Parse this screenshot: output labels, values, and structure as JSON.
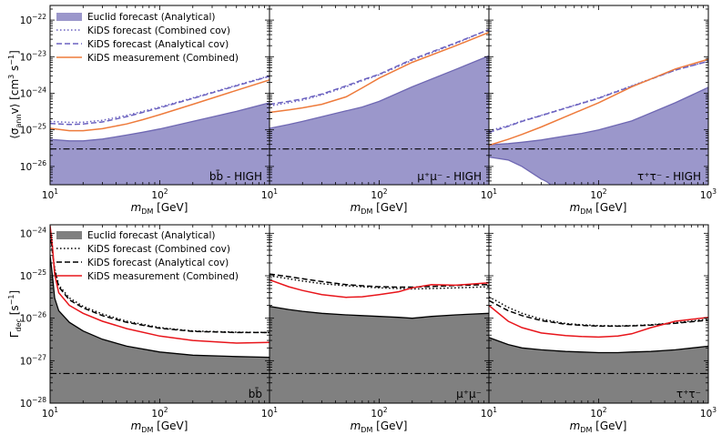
{
  "figure": {
    "rows": [
      {
        "id": "annihilation",
        "ylabel": "⟨σ_ann v⟩ [cm³ s⁻¹]",
        "ylabel_main": "⟨σ",
        "ylabel_sub": "ann",
        "ylabel_tail": "v⟩ [cm",
        "ylabel_sup1": "3",
        "ylabel_mid": " s",
        "ylabel_sup2": "−1",
        "ylabel_end": "]",
        "ylim_log10": [
          -26.5,
          -21.6
        ],
        "yticks": [
          {
            "exp": -26,
            "base": "10",
            "sup": "−26"
          },
          {
            "exp": -25,
            "base": "10",
            "sup": "−25"
          },
          {
            "exp": -24,
            "base": "10",
            "sup": "−24"
          },
          {
            "exp": -23,
            "base": "10",
            "sup": "−23"
          },
          {
            "exp": -22,
            "base": "10",
            "sup": "−22"
          }
        ],
        "legend": [
          {
            "style": "fill",
            "color": "#9b97cb",
            "label": "Euclid forecast (Analytical)"
          },
          {
            "style": "dotted",
            "color": "#6b62c0",
            "label": "KiDS forecast (Combined cov)"
          },
          {
            "style": "dashed",
            "color": "#6b62c0",
            "label": "KiDS forecast (Analytical cov)"
          },
          {
            "style": "solid",
            "color": "#ee7b3c",
            "label": "KiDS measurement (Combined)"
          }
        ],
        "colors": {
          "fill": "#9b97cb",
          "fill_edge": "#6f68b3",
          "forecast": "#6b62c0",
          "measurement": "#ee7b3c",
          "reference": "#000000"
        }
      },
      {
        "id": "decay",
        "ylabel": "Γ_dec [s⁻¹]",
        "ylabel_main": "Γ",
        "ylabel_sub": "dec",
        "ylabel_tail": " [s",
        "ylabel_sup1": "−1",
        "ylabel_mid": "",
        "ylabel_sup2": "",
        "ylabel_end": "]",
        "ylim_log10": [
          -28.0,
          -23.8
        ],
        "yticks": [
          {
            "exp": -28,
            "base": "10",
            "sup": "−28"
          },
          {
            "exp": -27,
            "base": "10",
            "sup": "−27"
          },
          {
            "exp": -26,
            "base": "10",
            "sup": "−26"
          },
          {
            "exp": -25,
            "base": "10",
            "sup": "−25"
          },
          {
            "exp": -24,
            "base": "10",
            "sup": "−24"
          }
        ],
        "legend": [
          {
            "style": "fill",
            "color": "#808080",
            "label": "Euclid forecast (Analytical)"
          },
          {
            "style": "dotted",
            "color": "#000000",
            "label": "KiDS forecast (Combined cov)"
          },
          {
            "style": "dashed",
            "color": "#000000",
            "label": "KiDS forecast (Analytical cov)"
          },
          {
            "style": "solid",
            "color": "#e8151b",
            "label": "KiDS measurement (Combined)"
          }
        ],
        "colors": {
          "fill": "#808080",
          "fill_edge": "#000000",
          "forecast": "#000000",
          "measurement": "#e8151b",
          "reference": "#000000"
        }
      }
    ],
    "xaxis": {
      "label_main": "m",
      "label_sub": "DM",
      "label_tail": " [GeV]",
      "xlim_log10": [
        1,
        3
      ],
      "ticks": [
        {
          "exp": 1,
          "base": "10",
          "sup": "1"
        },
        {
          "exp": 2,
          "base": "10",
          "sup": "2"
        },
        {
          "exp": 3,
          "base": "10",
          "sup": "3"
        }
      ]
    }
  },
  "chart_data": [
    {
      "type": "line",
      "row": 0,
      "col": 0,
      "channel_label": "bb̄ - HIGH",
      "xlabel": "m_DM [GeV]",
      "ylabel": "⟨σ_ann v⟩ [cm³ s⁻¹]",
      "xscale": "log",
      "yscale": "log",
      "xlim": [
        10,
        1000
      ],
      "ylim": [
        3e-27,
        2.5e-22
      ],
      "x": [
        10,
        15,
        20,
        30,
        50,
        70,
        100,
        200,
        500,
        1000
      ],
      "series": [
        {
          "name": "Euclid forecast (Analytical)",
          "kind": "fill",
          "values": [
            5.5e-26,
            5e-26,
            5e-26,
            5.6e-26,
            7.2e-26,
            8.6e-26,
            1.06e-25,
            1.7e-25,
            3.2e-25,
            5.5e-25
          ]
        },
        {
          "name": "KiDS forecast (Combined cov)",
          "kind": "dotted",
          "values": [
            1.7e-25,
            1.6e-25,
            1.62e-25,
            1.82e-25,
            2.5e-25,
            3.2e-25,
            4.2e-25,
            7.5e-25,
            1.65e-24,
            3e-24
          ]
        },
        {
          "name": "KiDS forecast (Analytical cov)",
          "kind": "dashed",
          "values": [
            1.5e-25,
            1.4e-25,
            1.45e-25,
            1.65e-25,
            2.3e-25,
            3e-25,
            4e-25,
            7.2e-25,
            1.6e-24,
            2.9e-24
          ]
        },
        {
          "name": "KiDS measurement (Combined)",
          "kind": "solid",
          "values": [
            1.1e-25,
            9.5e-26,
            9.5e-26,
            1.08e-25,
            1.45e-25,
            1.9e-25,
            2.6e-25,
            5e-25,
            1.2e-24,
            2.3e-24
          ]
        },
        {
          "name": "reference",
          "kind": "dashdot",
          "values": [
            3e-26,
            3e-26,
            3e-26,
            3e-26,
            3e-26,
            3e-26,
            3e-26,
            3e-26,
            3e-26,
            3e-26
          ]
        }
      ]
    },
    {
      "type": "line",
      "row": 0,
      "col": 1,
      "channel_label": "μ⁺μ⁻ - HIGH",
      "xlabel": "m_DM [GeV]",
      "ylabel": "⟨σ_ann v⟩ [cm³ s⁻¹]",
      "xscale": "log",
      "yscale": "log",
      "xlim": [
        10,
        1000
      ],
      "ylim": [
        3e-27,
        2.5e-22
      ],
      "x": [
        10,
        15,
        20,
        30,
        50,
        70,
        100,
        200,
        500,
        1000
      ],
      "series": [
        {
          "name": "Euclid forecast (Analytical)",
          "kind": "fill",
          "values": [
            1.1e-25,
            1.4e-25,
            1.7e-25,
            2.3e-25,
            3.3e-25,
            4.2e-25,
            6e-25,
            1.5e-24,
            4.5e-24,
            1.05e-23
          ]
        },
        {
          "name": "KiDS forecast (Combined cov)",
          "kind": "dotted",
          "values": [
            4.5e-25,
            5.5e-25,
            6.5e-25,
            9e-25,
            1.5e-24,
            2.2e-24,
            3.2e-24,
            8e-24,
            2.3e-23,
            5.5e-23
          ]
        },
        {
          "name": "KiDS forecast (Analytical cov)",
          "kind": "dashed",
          "values": [
            5e-25,
            6e-25,
            7e-25,
            9.5e-25,
            1.6e-24,
            2.3e-24,
            3.3e-24,
            8.5e-24,
            2.4e-23,
            5.5e-23
          ]
        },
        {
          "name": "KiDS measurement (Combined)",
          "kind": "solid",
          "values": [
            3e-25,
            3.5e-25,
            4e-25,
            5e-25,
            8e-25,
            1.4e-24,
            2.6e-24,
            7e-24,
            2e-23,
            4.6e-23
          ]
        },
        {
          "name": "reference",
          "kind": "dashdot",
          "values": [
            3e-26,
            3e-26,
            3e-26,
            3e-26,
            3e-26,
            3e-26,
            3e-26,
            3e-26,
            3e-26,
            3e-26
          ]
        }
      ]
    },
    {
      "type": "line",
      "row": 0,
      "col": 2,
      "channel_label": "τ⁺τ⁻ - HIGH",
      "xlabel": "m_DM [GeV]",
      "ylabel": "⟨σ_ann v⟩ [cm³ s⁻¹]",
      "xscale": "log",
      "yscale": "log",
      "xlim": [
        10,
        1000
      ],
      "ylim": [
        3e-27,
        2.5e-22
      ],
      "x": [
        10,
        15,
        20,
        30,
        50,
        70,
        100,
        200,
        500,
        1000
      ],
      "series": [
        {
          "name": "Euclid forecast (Analytical)",
          "kind": "fill",
          "values": [
            3.9e-26,
            4.2e-26,
            4.6e-26,
            5.3e-26,
            6.8e-26,
            8e-26,
            1e-25,
            1.75e-25,
            5.5e-25,
            1.45e-24
          ]
        },
        {
          "name": "Euclid forecast (Analytical) lower edge",
          "kind": "fill-lower",
          "values": [
            1.8e-26,
            1.5e-26,
            1e-26,
            4.5e-27,
            null,
            null,
            null,
            null,
            null,
            null
          ]
        },
        {
          "name": "KiDS forecast (Combined cov)",
          "kind": "dotted",
          "values": [
            9.5e-26,
            1.3e-25,
            1.75e-25,
            2.5e-25,
            4e-25,
            5.4e-25,
            7.5e-25,
            1.6e-24,
            4.3e-24,
            7.5e-24
          ]
        },
        {
          "name": "KiDS forecast (Analytical cov)",
          "kind": "dashed",
          "values": [
            8.5e-26,
            1.25e-25,
            1.7e-25,
            2.45e-25,
            3.9e-25,
            5.3e-25,
            7.3e-25,
            1.55e-24,
            4.3e-24,
            7.5e-24
          ]
        },
        {
          "name": "KiDS measurement (Combined)",
          "kind": "solid",
          "values": [
            3.8e-26,
            5.5e-26,
            7.5e-26,
            1.2e-25,
            2.3e-25,
            3.5e-25,
            5.5e-25,
            1.5e-24,
            4.6e-24,
            8.5e-24
          ]
        },
        {
          "name": "reference",
          "kind": "dashdot",
          "values": [
            3e-26,
            3e-26,
            3e-26,
            3e-26,
            3e-26,
            3e-26,
            3e-26,
            3e-26,
            3e-26,
            3e-26
          ]
        }
      ]
    },
    {
      "type": "line",
      "row": 1,
      "col": 0,
      "channel_label": "bb̄",
      "xlabel": "m_DM [GeV]",
      "ylabel": "Γ_dec [s⁻¹]",
      "xscale": "log",
      "yscale": "log",
      "xlim": [
        10,
        1000
      ],
      "ylim": [
        1e-28,
        1.6e-24
      ],
      "x": [
        10,
        10.5,
        11,
        12,
        15,
        20,
        30,
        50,
        100,
        200,
        500,
        1000
      ],
      "series": [
        {
          "name": "Euclid forecast (Analytical)",
          "kind": "fill",
          "values": [
            3e-25,
            1e-25,
            3e-26,
            1.5e-26,
            8e-27,
            5e-27,
            3.2e-27,
            2.2e-27,
            1.6e-27,
            1.35e-27,
            1.25e-27,
            1.2e-27
          ]
        },
        {
          "name": "KiDS forecast (Combined cov)",
          "kind": "dotted",
          "values": [
            1.2e-24,
            4e-25,
            1.5e-25,
            6e-26,
            3e-26,
            1.9e-26,
            1.25e-26,
            8.5e-27,
            6e-27,
            5e-27,
            4.7e-27,
            4.6e-27
          ]
        },
        {
          "name": "KiDS forecast (Analytical cov)",
          "kind": "dashed",
          "values": [
            1.1e-24,
            3.6e-25,
            1.35e-25,
            5.5e-26,
            2.7e-26,
            1.75e-26,
            1.15e-26,
            8e-27,
            5.8e-27,
            4.9e-27,
            4.6e-27,
            4.6e-27
          ]
        },
        {
          "name": "KiDS measurement (Combined)",
          "kind": "solid",
          "values": [
            1.5e-24,
            5e-25,
            1.1e-25,
            4e-26,
            2e-26,
            1.3e-26,
            8.5e-27,
            5.7e-27,
            3.8e-27,
            3e-27,
            2.6e-27,
            2.7e-27
          ]
        },
        {
          "name": "reference",
          "kind": "dashdot",
          "values": [
            5e-28,
            5e-28,
            5e-28,
            5e-28,
            5e-28,
            5e-28,
            5e-28,
            5e-28,
            5e-28,
            5e-28,
            5e-28,
            5e-28
          ]
        }
      ]
    },
    {
      "type": "line",
      "row": 1,
      "col": 1,
      "channel_label": "μ⁺μ⁻",
      "xlabel": "m_DM [GeV]",
      "ylabel": "Γ_dec [s⁻¹]",
      "xscale": "log",
      "yscale": "log",
      "xlim": [
        10,
        1000
      ],
      "ylim": [
        1e-28,
        1.6e-24
      ],
      "x": [
        10,
        15,
        20,
        30,
        50,
        70,
        100,
        150,
        200,
        300,
        500,
        1000
      ],
      "series": [
        {
          "name": "Euclid forecast (Analytical)",
          "kind": "fill",
          "values": [
            1.9e-26,
            1.6e-26,
            1.45e-26,
            1.3e-26,
            1.2e-26,
            1.15e-26,
            1.1e-26,
            1.05e-26,
            1e-26,
            1.1e-26,
            1.2e-26,
            1.3e-26
          ]
        },
        {
          "name": "KiDS forecast (Combined cov)",
          "kind": "dotted",
          "values": [
            1e-25,
            8.5e-26,
            7.5e-26,
            6.5e-26,
            5.8e-26,
            5.5e-26,
            5.2e-26,
            5e-26,
            4.9e-26,
            5e-26,
            5.2e-26,
            5.5e-26
          ]
        },
        {
          "name": "KiDS forecast (Analytical cov)",
          "kind": "dashed",
          "values": [
            1.1e-25,
            9.5e-26,
            8.5e-26,
            7.3e-26,
            6.2e-26,
            5.8e-26,
            5.5e-26,
            5.4e-26,
            5.4e-26,
            5.6e-26,
            5.9e-26,
            6.2e-26
          ]
        },
        {
          "name": "KiDS measurement (Combined)",
          "kind": "solid",
          "values": [
            8e-26,
            5.5e-26,
            4.5e-26,
            3.6e-26,
            3.1e-26,
            3.2e-26,
            3.6e-26,
            4.2e-26,
            5.2e-26,
            6.2e-26,
            6e-26,
            6.8e-26
          ]
        },
        {
          "name": "reference",
          "kind": "dashdot",
          "values": [
            5e-28,
            5e-28,
            5e-28,
            5e-28,
            5e-28,
            5e-28,
            5e-28,
            5e-28,
            5e-28,
            5e-28,
            5e-28,
            5e-28
          ]
        }
      ]
    },
    {
      "type": "line",
      "row": 1,
      "col": 2,
      "channel_label": "τ⁺τ⁻",
      "xlabel": "m_DM [GeV]",
      "ylabel": "Γ_dec [s⁻¹]",
      "xscale": "log",
      "yscale": "log",
      "xlim": [
        10,
        1000
      ],
      "ylim": [
        1e-28,
        1.6e-24
      ],
      "x": [
        10,
        15,
        20,
        30,
        50,
        70,
        100,
        150,
        200,
        300,
        500,
        1000
      ],
      "series": [
        {
          "name": "Euclid forecast (Analytical)",
          "kind": "fill",
          "values": [
            3.5e-27,
            2.4e-27,
            2e-27,
            1.8e-27,
            1.65e-27,
            1.6e-27,
            1.55e-27,
            1.55e-27,
            1.6e-27,
            1.65e-27,
            1.8e-27,
            2.2e-27
          ]
        },
        {
          "name": "KiDS forecast (Combined cov)",
          "kind": "dotted",
          "values": [
            3.2e-26,
            1.8e-26,
            1.3e-26,
            9.5e-27,
            7.5e-27,
            7e-27,
            6.7e-27,
            6.6e-27,
            6.7e-27,
            7e-27,
            7.8e-27,
            9.5e-27
          ]
        },
        {
          "name": "KiDS forecast (Analytical cov)",
          "kind": "dashed",
          "values": [
            2.6e-26,
            1.5e-26,
            1.15e-26,
            8.8e-27,
            7.2e-27,
            6.8e-27,
            6.5e-27,
            6.5e-27,
            6.6e-27,
            6.9e-27,
            7.6e-27,
            9e-27
          ]
        },
        {
          "name": "KiDS measurement (Combined)",
          "kind": "solid",
          "values": [
            2e-26,
            8.5e-27,
            6e-27,
            4.5e-27,
            3.9e-27,
            3.7e-27,
            3.6e-27,
            3.8e-27,
            4.3e-27,
            6e-27,
            8.5e-27,
            1.05e-26
          ]
        },
        {
          "name": "reference",
          "kind": "dashdot",
          "values": [
            5e-28,
            5e-28,
            5e-28,
            5e-28,
            5e-28,
            5e-28,
            5e-28,
            5e-28,
            5e-28,
            5e-28,
            5e-28,
            5e-28
          ]
        }
      ]
    }
  ]
}
